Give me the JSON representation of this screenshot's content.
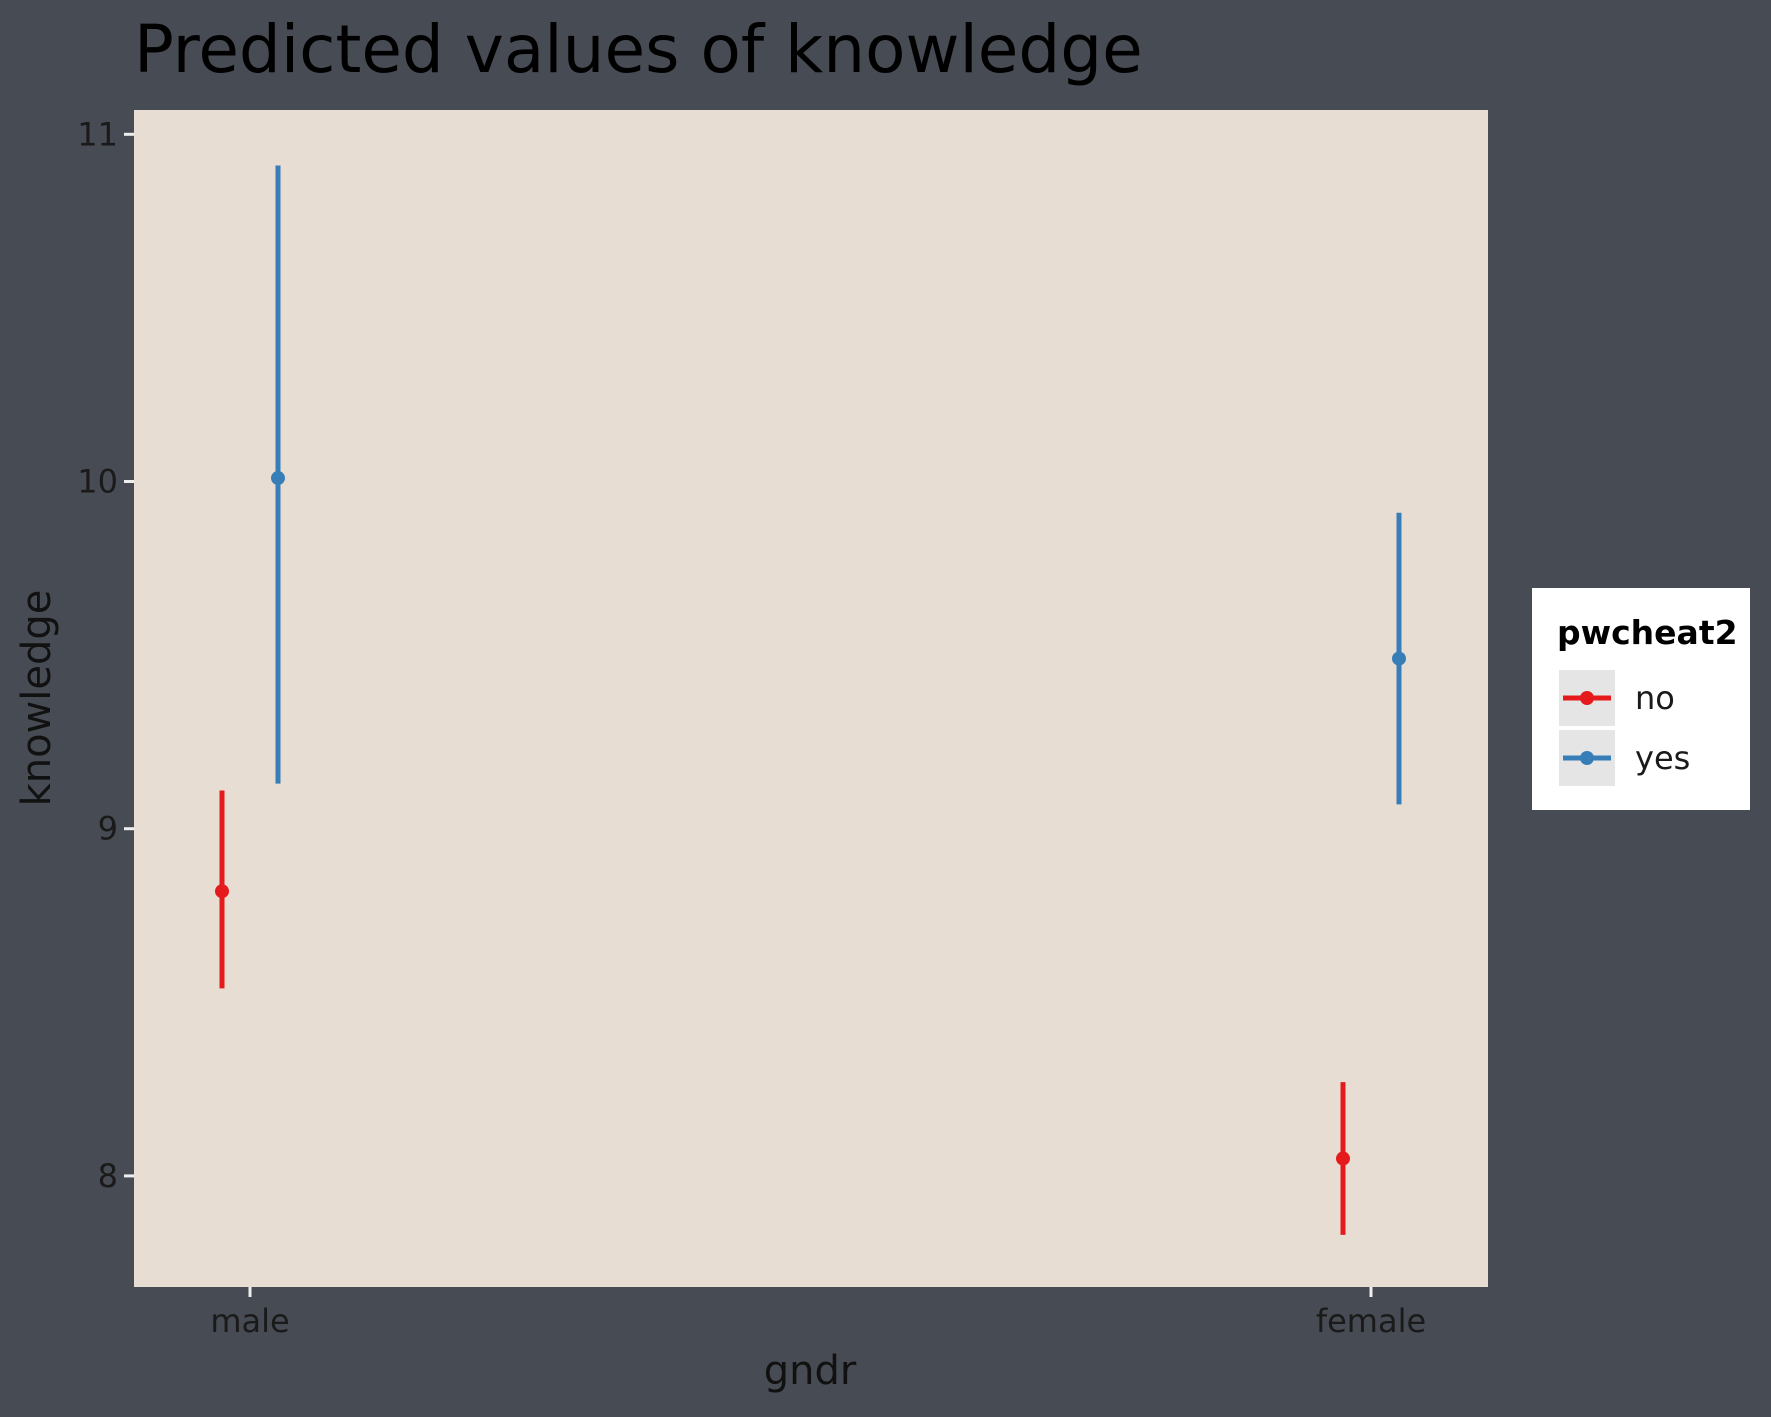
{
  "chart_data": {
    "type": "scatter",
    "title": "Predicted values of knowledge",
    "xlabel": "gndr",
    "ylabel": "knowledge",
    "categories": [
      "male",
      "female"
    ],
    "ylim": [
      7.68,
      11.07
    ],
    "yticks": [
      "8",
      "9",
      "10",
      "11"
    ],
    "grid": false,
    "legend": {
      "title": "pwcheat2",
      "placement": "right"
    },
    "series": [
      {
        "name": "no",
        "color": "#e41a1c",
        "values": [
          8.82,
          8.05
        ],
        "lower": [
          8.54,
          7.83
        ],
        "upper": [
          9.11,
          8.27
        ]
      },
      {
        "name": "yes",
        "color": "#377eb8",
        "values": [
          10.01,
          9.49
        ],
        "lower": [
          9.13,
          9.07
        ],
        "upper": [
          10.91,
          9.91
        ]
      }
    ]
  },
  "colors": {
    "page_background": "#474b53",
    "panel_background": "#e7ddd3",
    "legend_background": "#ffffff",
    "legend_key_background": "#e5e5e5"
  }
}
